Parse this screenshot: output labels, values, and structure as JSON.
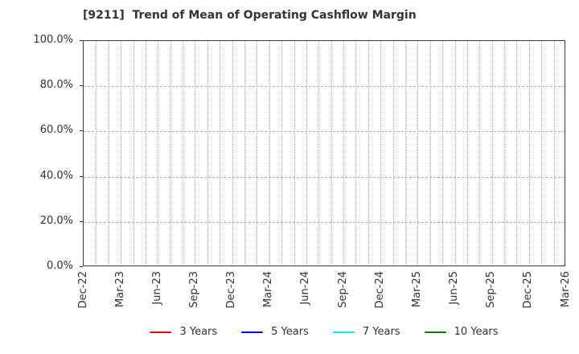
{
  "chart_data": {
    "type": "line",
    "title": "[9211]  Trend of Mean of Operating Cashflow Margin",
    "x_tick_labels": [
      "Dec-22",
      "Mar-23",
      "Jun-23",
      "Sep-23",
      "Dec-23",
      "Mar-24",
      "Jun-24",
      "Sep-24",
      "Dec-24",
      "Mar-25",
      "Jun-25",
      "Sep-25",
      "Dec-25",
      "Mar-26"
    ],
    "x_minor_gridlines_per_interval": 3,
    "y_tick_labels": [
      "100.0%",
      "80.0%",
      "60.0%",
      "40.0%",
      "20.0%",
      "0.0%"
    ],
    "ylim": [
      0,
      100
    ],
    "y_tick_step": 20,
    "grid": true,
    "plot_empty": true,
    "legend_position": "bottom",
    "series": [
      {
        "name": "3 Years",
        "color": "#ff0000",
        "values": []
      },
      {
        "name": "5 Years",
        "color": "#0000ff",
        "values": []
      },
      {
        "name": "7 Years",
        "color": "#00eeee",
        "values": []
      },
      {
        "name": "10 Years",
        "color": "#007f00",
        "values": []
      }
    ]
  },
  "colors": {
    "frame": "#3a3a3a",
    "grid_vertical": "#a8a8a8",
    "grid_horizontal": "#b3b3b3",
    "text": "#333333",
    "background": "#ffffff"
  }
}
